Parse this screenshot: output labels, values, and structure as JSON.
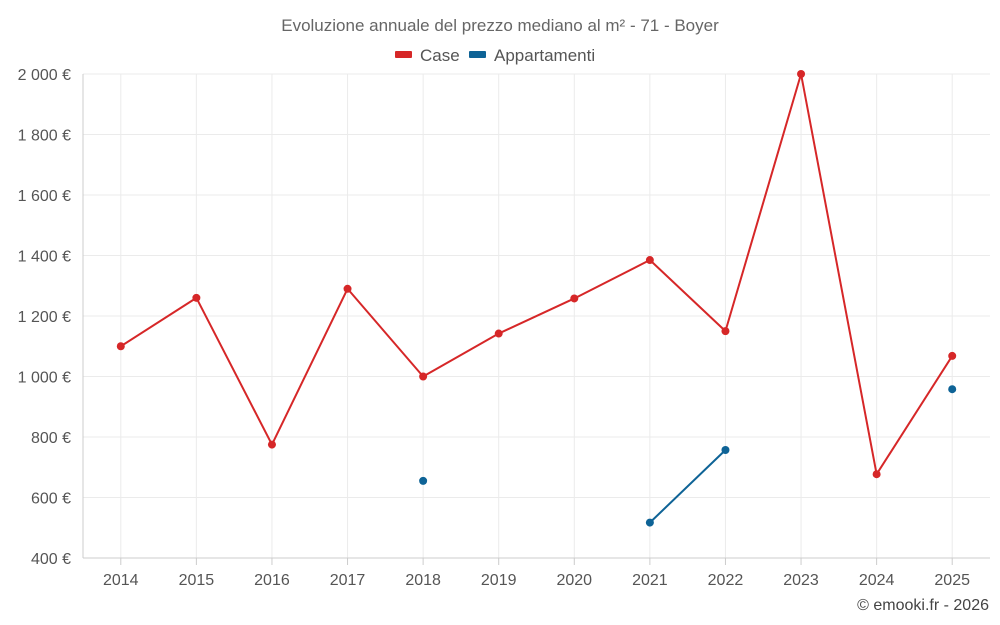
{
  "chart_data": {
    "type": "line",
    "title": "Evoluzione annuale del prezzo mediano al m² - 71 - Boyer",
    "x": [
      "2014",
      "2015",
      "2016",
      "2017",
      "2018",
      "2019",
      "2020",
      "2021",
      "2022",
      "2023",
      "2024",
      "2025"
    ],
    "ylim": [
      400,
      2000
    ],
    "yticks": [
      400,
      600,
      800,
      1000,
      1200,
      1400,
      1600,
      1800,
      2000
    ],
    "ytick_labels": [
      "400 €",
      "600 €",
      "800 €",
      "1 000 €",
      "1 200 €",
      "1 400 €",
      "1 600 €",
      "1 800 €",
      "2 000 €"
    ],
    "grid": true,
    "legend_position": "top-center",
    "series": [
      {
        "name": "Case",
        "color": "#d62728",
        "values": [
          1100,
          1260,
          775,
          1290,
          1000,
          1142,
          1258,
          1385,
          1150,
          2000,
          677,
          1068
        ]
      },
      {
        "name": "Appartamenti",
        "color": "#0e6396",
        "values": [
          null,
          null,
          null,
          null,
          655,
          null,
          null,
          517,
          757,
          null,
          null,
          958
        ]
      }
    ],
    "credit": "© emooki.fr - 2026"
  }
}
